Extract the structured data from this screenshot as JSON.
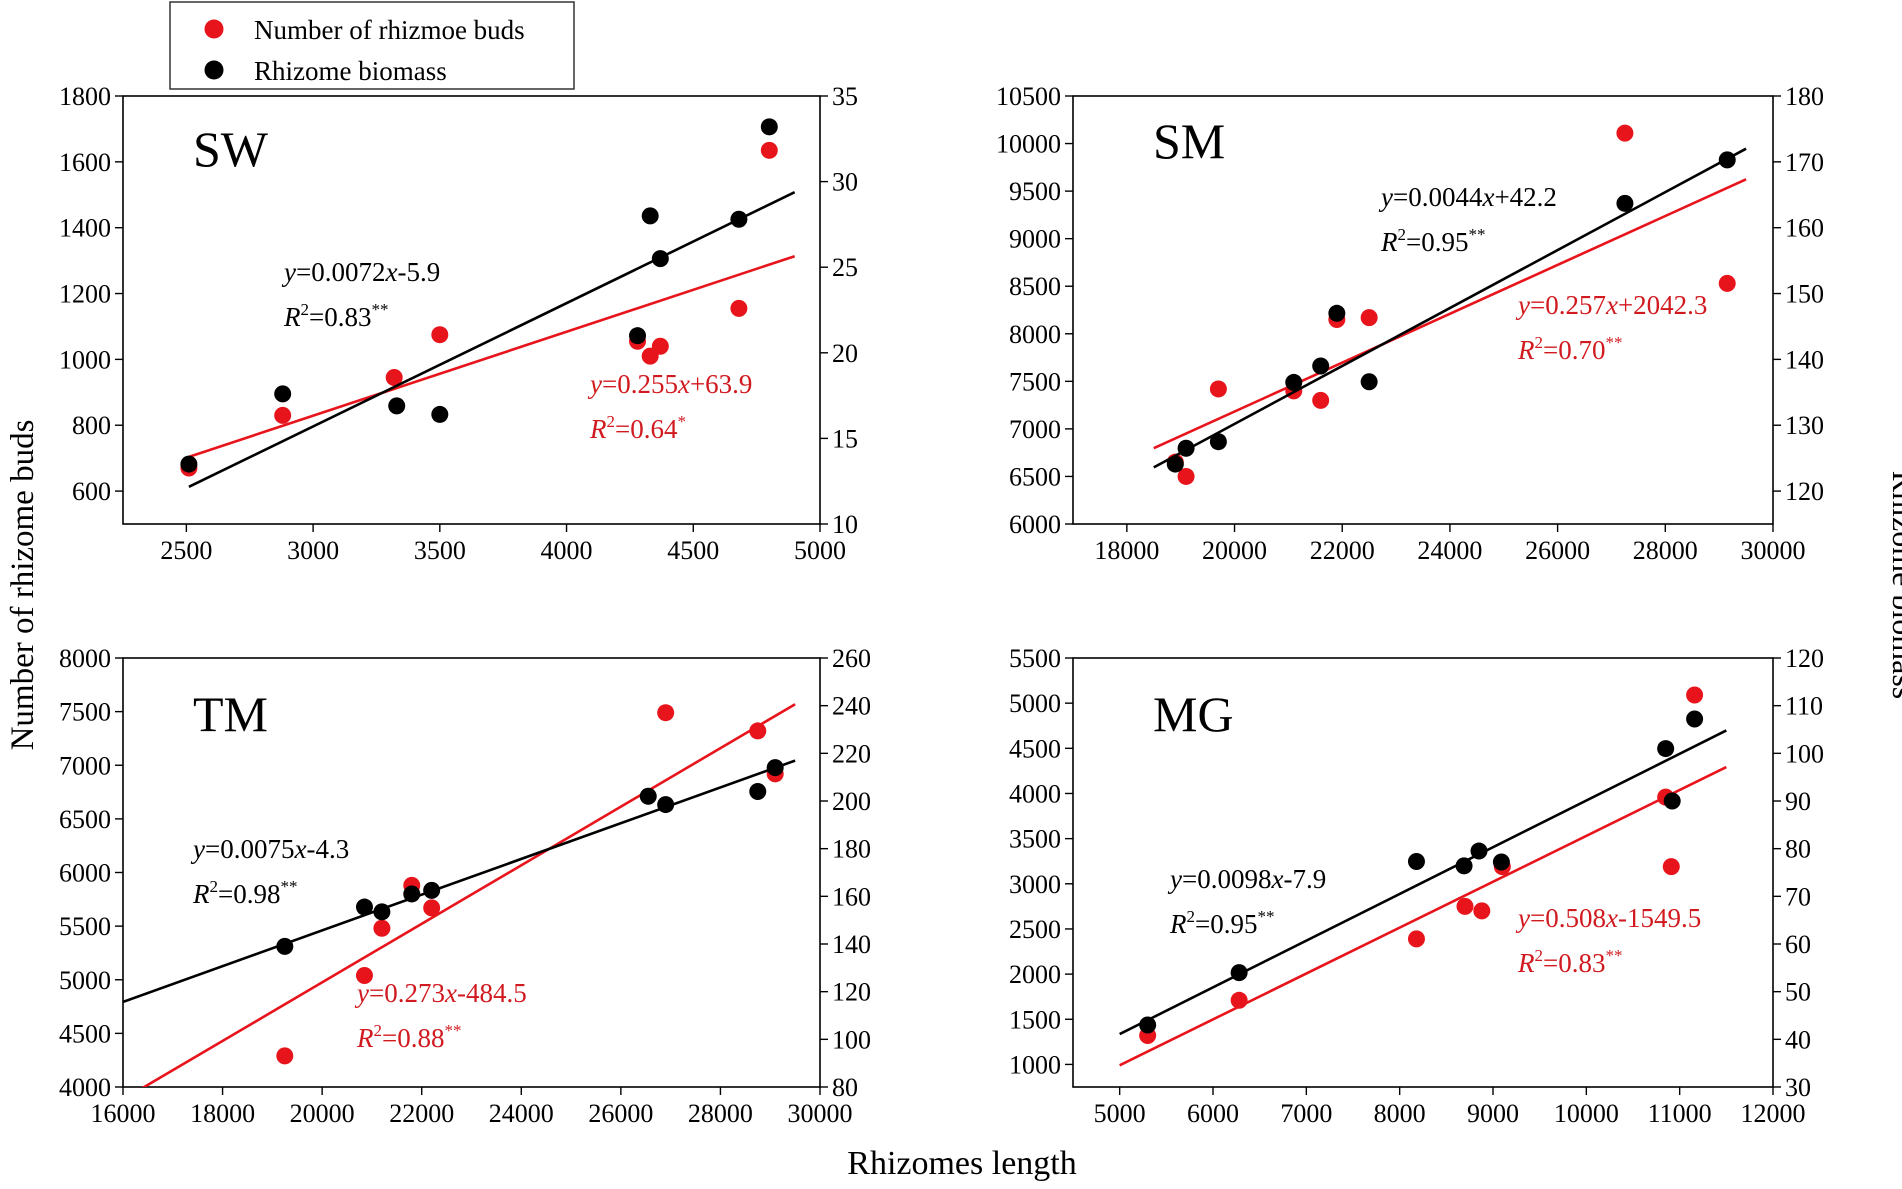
{
  "figure": {
    "xlabel": "Rhizomes length",
    "ylabel_left": "Number of rhizome buds",
    "ylabel_right": "Rhizome biomass"
  },
  "legend": {
    "items": [
      {
        "label": "Number of rhizmoe buds",
        "color": "#e8141c"
      },
      {
        "label": "Rhizome biomass",
        "color": "#000000"
      }
    ]
  },
  "colors": {
    "buds": "#e8141c",
    "biomass": "#000000",
    "buds_text": "#d11a1f"
  },
  "chart_data": [
    {
      "type": "scatter",
      "title": "SW",
      "xlim": [
        2250,
        5000
      ],
      "xticks": [
        2500,
        3000,
        3500,
        4000,
        4500,
        5000
      ],
      "ylim_left": [
        500,
        1800
      ],
      "yticks_left": [
        600,
        800,
        1000,
        1200,
        1400,
        1600,
        1800
      ],
      "ylim_right": [
        10,
        35
      ],
      "yticks_right": [
        10,
        15,
        20,
        25,
        30,
        35
      ],
      "series": [
        {
          "name": "Number of rhizmoe buds",
          "axis": "left",
          "points": [
            [
              2510,
              670
            ],
            [
              2880,
              830
            ],
            [
              3320,
              945
            ],
            [
              3500,
              1075
            ],
            [
              4280,
              1055
            ],
            [
              4330,
              1010
            ],
            [
              4370,
              1040
            ],
            [
              4680,
              1155
            ],
            [
              4800,
              1635
            ]
          ],
          "fit": {
            "slope": 0.255,
            "intercept": 63.9,
            "x_range": [
              2510,
              4900
            ]
          },
          "eq": {
            "y": "y",
            "a": "=0.255",
            "x": "x",
            "b": "+63.9"
          },
          "r2": {
            "r": "R",
            "two": "2",
            "val": "=0.64",
            "sig": "*"
          }
        },
        {
          "name": "Rhizome biomass",
          "axis": "right",
          "points": [
            [
              2510,
              13.5
            ],
            [
              2880,
              17.6
            ],
            [
              3330,
              16.9
            ],
            [
              3500,
              16.4
            ],
            [
              4280,
              21.0
            ],
            [
              4330,
              28.0
            ],
            [
              4370,
              25.5
            ],
            [
              4680,
              27.8
            ],
            [
              4800,
              33.2
            ]
          ],
          "fit": {
            "slope": 0.0072,
            "intercept": -5.9,
            "x_range": [
              2510,
              4900
            ]
          },
          "eq": {
            "y": "y",
            "a": "=0.0072",
            "x": "x",
            "b": "-5.9"
          },
          "r2": {
            "r": "R",
            "two": "2",
            "val": "=0.83",
            "sig": "**"
          }
        }
      ]
    },
    {
      "type": "scatter",
      "title": "SM",
      "xlim": [
        17000,
        30000
      ],
      "xticks": [
        18000,
        20000,
        22000,
        24000,
        26000,
        28000,
        30000
      ],
      "ylim_left": [
        6000,
        10500
      ],
      "yticks_left": [
        6000,
        6500,
        7000,
        7500,
        8000,
        8500,
        9000,
        9500,
        10000,
        10500
      ],
      "ylim_right": [
        115,
        180
      ],
      "yticks_right": [
        120,
        130,
        140,
        150,
        160,
        170,
        180
      ],
      "series": [
        {
          "name": "Number of rhizmoe buds",
          "axis": "left",
          "points": [
            [
              18900,
              6650
            ],
            [
              19100,
              6500
            ],
            [
              19700,
              7420
            ],
            [
              21100,
              7400
            ],
            [
              21600,
              7300
            ],
            [
              21900,
              8150
            ],
            [
              22500,
              8170
            ],
            [
              27250,
              10110
            ],
            [
              29150,
              8530
            ]
          ],
          "fit": {
            "slope": 0.257,
            "intercept": 2042.3,
            "x_range": [
              18500,
              29500
            ]
          },
          "eq": {
            "y": "y",
            "a": "=0.257",
            "x": "x",
            "b": "+2042.3"
          },
          "r2": {
            "r": "R",
            "two": "2",
            "val": "=0.70",
            "sig": "**"
          }
        },
        {
          "name": "Rhizome biomass",
          "axis": "right",
          "points": [
            [
              18900,
              124.1
            ],
            [
              19100,
              126.5
            ],
            [
              19700,
              127.5
            ],
            [
              21100,
              136.5
            ],
            [
              21600,
              139.0
            ],
            [
              21900,
              147.0
            ],
            [
              22500,
              136.6
            ],
            [
              27250,
              163.7
            ],
            [
              29150,
              170.3
            ]
          ],
          "fit": {
            "slope": 0.0044,
            "intercept": 42.2,
            "x_range": [
              18500,
              29500
            ]
          },
          "eq": {
            "y": "y",
            "a": "=0.0044",
            "x": "x",
            "b": "+42.2"
          },
          "r2": {
            "r": "R",
            "two": "2",
            "val": "=0.95",
            "sig": "**"
          }
        }
      ]
    },
    {
      "type": "scatter",
      "title": "TM",
      "xlim": [
        16000,
        30000
      ],
      "xticks": [
        16000,
        18000,
        20000,
        22000,
        24000,
        26000,
        28000,
        30000
      ],
      "ylim_left": [
        4000,
        8000
      ],
      "yticks_left": [
        4000,
        4500,
        5000,
        5500,
        6000,
        6500,
        7000,
        7500,
        8000
      ],
      "ylim_right": [
        80,
        260
      ],
      "yticks_right": [
        80,
        100,
        120,
        140,
        160,
        180,
        200,
        220,
        240,
        260
      ],
      "series": [
        {
          "name": "Number of rhizmoe buds",
          "axis": "left",
          "points": [
            [
              19250,
              4290
            ],
            [
              20850,
              5040
            ],
            [
              21200,
              5480
            ],
            [
              21800,
              5880
            ],
            [
              22200,
              5670
            ],
            [
              26900,
              7490
            ],
            [
              28750,
              7320
            ],
            [
              29100,
              6920
            ]
          ],
          "fit": {
            "slope": 0.273,
            "intercept": -484.5,
            "x_range": [
              16400,
              29500
            ]
          },
          "eq": {
            "y": "y",
            "a": "=0.273",
            "x": "x",
            "b": "-484.5"
          },
          "r2": {
            "r": "R",
            "two": "2",
            "val": "=0.88",
            "sig": "**"
          }
        },
        {
          "name": "Rhizome biomass",
          "axis": "right",
          "points": [
            [
              19250,
              139
            ],
            [
              20850,
              155.5
            ],
            [
              21200,
              153.5
            ],
            [
              21800,
              161
            ],
            [
              22200,
              162.5
            ],
            [
              26550,
              202
            ],
            [
              26900,
              198.5
            ],
            [
              28750,
              204
            ],
            [
              29100,
              214
            ]
          ],
          "fit": {
            "slope": 0.0075,
            "intercept": -4.3,
            "x_range": [
              16000,
              29500
            ]
          },
          "eq": {
            "y": "y",
            "a": "=0.0075",
            "x": "x",
            "b": "-4.3"
          },
          "r2": {
            "r": "R",
            "two": "2",
            "val": "=0.98",
            "sig": "**"
          }
        }
      ]
    },
    {
      "type": "scatter",
      "title": "MG",
      "xlim": [
        4500,
        12000
      ],
      "xticks": [
        5000,
        6000,
        7000,
        8000,
        9000,
        10000,
        11000,
        12000
      ],
      "ylim_left": [
        750,
        5500
      ],
      "yticks_left": [
        1000,
        1500,
        2000,
        2500,
        3000,
        3500,
        4000,
        4500,
        5000,
        5500
      ],
      "ylim_right": [
        30,
        120
      ],
      "yticks_right": [
        30,
        40,
        50,
        60,
        70,
        80,
        90,
        100,
        110,
        120
      ],
      "series": [
        {
          "name": "Number of rhizmoe buds",
          "axis": "left",
          "points": [
            [
              5300,
              1320
            ],
            [
              6280,
              1710
            ],
            [
              8180,
              2390
            ],
            [
              8700,
              2750
            ],
            [
              8880,
              2700
            ],
            [
              9100,
              3190
            ],
            [
              10850,
              3960
            ],
            [
              10910,
              3190
            ],
            [
              11160,
              5090
            ]
          ],
          "fit": {
            "slope": 0.508,
            "intercept": -1549.5,
            "x_range": [
              5000,
              11500
            ]
          },
          "eq": {
            "y": "y",
            "a": "=0.508",
            "x": "x",
            "b": "-1549.5"
          },
          "r2": {
            "r": "R",
            "two": "2",
            "val": "=0.83",
            "sig": "**"
          }
        },
        {
          "name": "Rhizome biomass",
          "axis": "right",
          "points": [
            [
              5300,
              43.0
            ],
            [
              6280,
              54.0
            ],
            [
              8180,
              77.3
            ],
            [
              8690,
              76.4
            ],
            [
              8850,
              79.5
            ],
            [
              9090,
              77.2
            ],
            [
              10850,
              101.0
            ],
            [
              10920,
              90.0
            ],
            [
              11160,
              107.2
            ]
          ],
          "fit": {
            "slope": 0.0098,
            "intercept": -7.9,
            "x_range": [
              5000,
              11500
            ]
          },
          "eq": {
            "y": "y",
            "a": "=0.0098",
            "x": "x",
            "b": "-7.9"
          },
          "r2": {
            "r": "R",
            "two": "2",
            "val": "=0.95",
            "sig": "**"
          }
        }
      ]
    }
  ]
}
